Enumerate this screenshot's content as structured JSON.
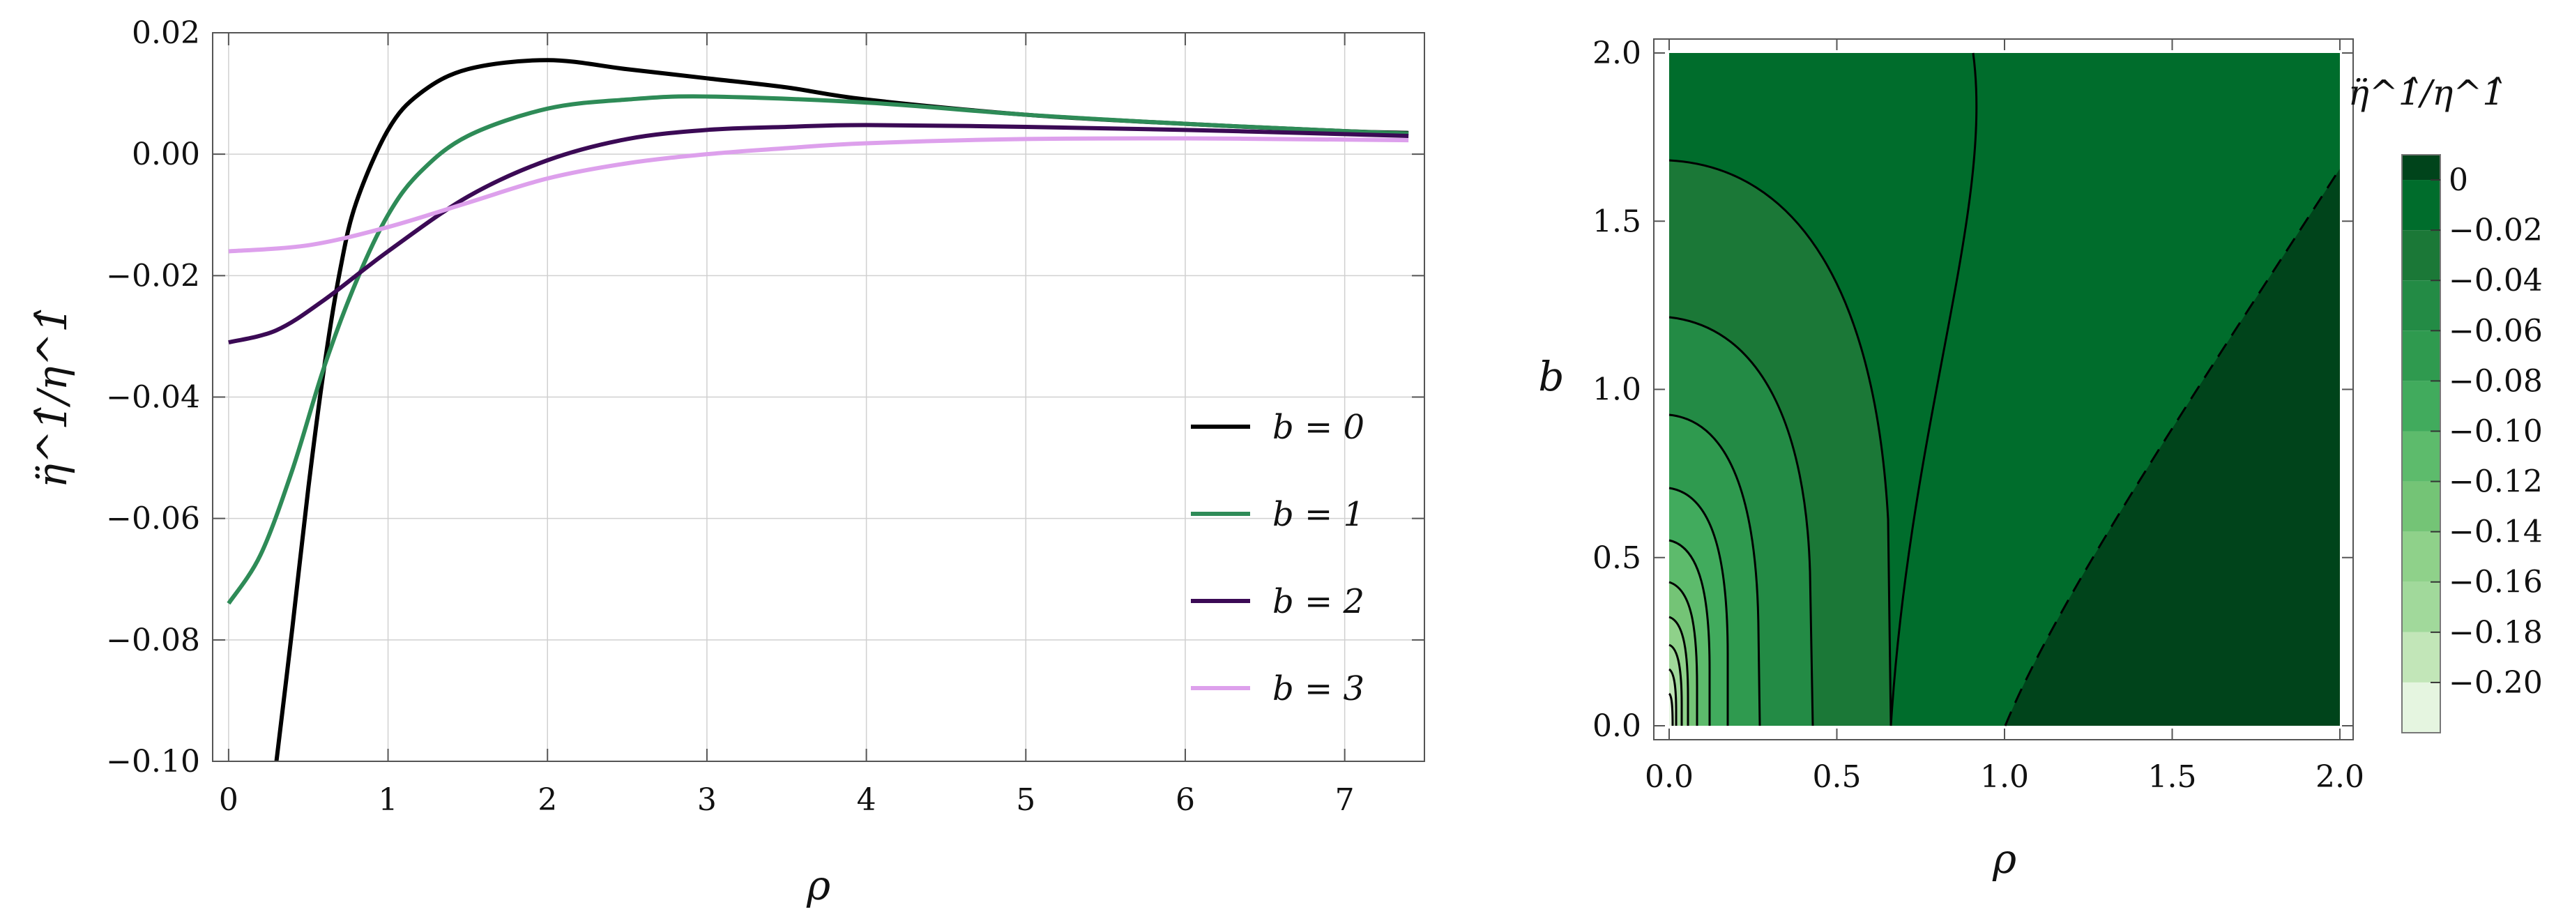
{
  "chart_data": [
    {
      "type": "line",
      "title": "",
      "xlabel": "ρ",
      "ylabel": "η̈^1̂/η^1̂",
      "xlim": [
        -0.1,
        7.5
      ],
      "ylim": [
        -0.1,
        0.02
      ],
      "xticks": [
        "0",
        "1",
        "2",
        "3",
        "4",
        "5",
        "6",
        "7"
      ],
      "yticks": [
        "0.02",
        "0.00",
        "−0.02",
        "−0.04",
        "−0.06",
        "−0.08",
        "−0.10"
      ],
      "grid": true,
      "legend_position": "lower-right",
      "series": [
        {
          "name": "b = 0",
          "color": "#000000",
          "x": [
            0.3,
            0.4,
            0.5,
            0.6,
            0.7,
            0.8,
            1.0,
            1.2,
            1.5,
            2.0,
            2.5,
            3.0,
            3.5,
            4.0,
            5.0,
            6.0,
            7.0,
            7.4
          ],
          "y": [
            -0.1,
            -0.078,
            -0.055,
            -0.035,
            -0.019,
            -0.008,
            0.004,
            0.01,
            0.014,
            0.0155,
            0.014,
            0.0125,
            0.011,
            0.009,
            0.0065,
            0.005,
            0.0038,
            0.0035
          ]
        },
        {
          "name": "b = 1",
          "color": "#2e8b57",
          "x": [
            0.0,
            0.2,
            0.4,
            0.6,
            0.8,
            1.0,
            1.2,
            1.5,
            2.0,
            2.5,
            3.0,
            4.0,
            5.0,
            6.0,
            7.0,
            7.4
          ],
          "y": [
            -0.074,
            -0.066,
            -0.052,
            -0.035,
            -0.021,
            -0.01,
            -0.003,
            0.003,
            0.0075,
            0.009,
            0.0095,
            0.0085,
            0.0065,
            0.005,
            0.0038,
            0.0034
          ]
        },
        {
          "name": "b = 2",
          "color": "#3b0a55",
          "x": [
            0.0,
            0.3,
            0.6,
            1.0,
            1.5,
            2.0,
            2.5,
            3.0,
            3.5,
            4.0,
            5.0,
            6.0,
            7.0,
            7.4
          ],
          "y": [
            -0.031,
            -0.029,
            -0.024,
            -0.016,
            -0.007,
            -0.001,
            0.0025,
            0.004,
            0.0045,
            0.0048,
            0.0045,
            0.004,
            0.0033,
            0.003
          ]
        },
        {
          "name": "b = 3",
          "color": "#dda0ec",
          "x": [
            0.0,
            0.5,
            1.0,
            1.5,
            2.0,
            2.5,
            3.0,
            3.5,
            4.0,
            5.0,
            6.0,
            7.0,
            7.4
          ],
          "y": [
            -0.016,
            -0.015,
            -0.012,
            -0.008,
            -0.004,
            -0.0015,
            0.0,
            0.001,
            0.0018,
            0.0025,
            0.0026,
            0.0024,
            0.0023
          ]
        }
      ]
    },
    {
      "type": "heatmap",
      "title": "",
      "xlabel": "ρ",
      "ylabel": "b",
      "xlim": [
        0.0,
        2.0
      ],
      "ylim": [
        0.0,
        2.0
      ],
      "xticks": [
        "0.0",
        "0.5",
        "1.0",
        "1.5",
        "2.0"
      ],
      "yticks": [
        "0.0",
        "0.5",
        "1.0",
        "1.5",
        "2.0"
      ],
      "colorbar_title": "η̈^1̂/η^1̂",
      "colorbar_ticks": [
        "0",
        "−0.02",
        "−0.04",
        "−0.06",
        "−0.08",
        "−0.10",
        "−0.12",
        "−0.14",
        "−0.16",
        "−0.18",
        "−0.20"
      ],
      "levels": [
        0.01,
        0.0,
        -0.02,
        -0.04,
        -0.06,
        -0.08,
        -0.1,
        -0.12,
        -0.14,
        -0.16,
        -0.18,
        -0.2,
        -0.22
      ],
      "colors": [
        "#00441b",
        "#006d2c",
        "#1b7837",
        "#238b45",
        "#2f9a4f",
        "#41ab5d",
        "#5dbb6c",
        "#74c476",
        "#8fd18a",
        "#a1d99b",
        "#c2e6b8",
        "#e5f5e0"
      ],
      "contour_note": "solid contours at negative levels, dashed contour at zero level"
    }
  ]
}
